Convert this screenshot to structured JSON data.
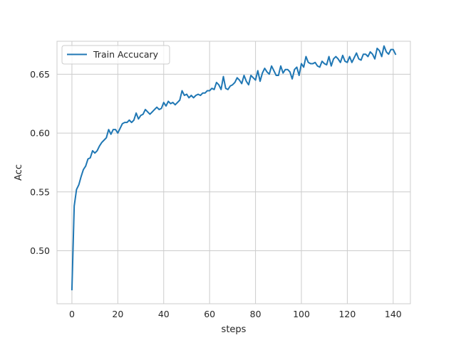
{
  "chart_data": {
    "type": "line",
    "title": "",
    "xlabel": "steps",
    "ylabel": "Acc",
    "xlim": [
      -6.5,
      147.5
    ],
    "ylim": [
      0.455,
      0.678
    ],
    "xticks": [
      0,
      20,
      40,
      60,
      80,
      100,
      120,
      140
    ],
    "yticks": [
      0.5,
      0.55,
      0.6,
      0.65
    ],
    "xtick_labels": [
      "0",
      "20",
      "40",
      "60",
      "80",
      "100",
      "120",
      "140"
    ],
    "ytick_labels": [
      "0.50",
      "0.55",
      "0.60",
      "0.65"
    ],
    "grid": true,
    "legend_position": "upper-left",
    "series": [
      {
        "name": "Train Accucary",
        "color": "#1f77b4",
        "x": [
          0,
          1,
          2,
          3,
          4,
          5,
          6,
          7,
          8,
          9,
          10,
          11,
          12,
          13,
          14,
          15,
          16,
          17,
          18,
          19,
          20,
          21,
          22,
          23,
          24,
          25,
          26,
          27,
          28,
          29,
          30,
          31,
          32,
          33,
          34,
          35,
          36,
          37,
          38,
          39,
          40,
          41,
          42,
          43,
          44,
          45,
          46,
          47,
          48,
          49,
          50,
          51,
          52,
          53,
          54,
          55,
          56,
          57,
          58,
          59,
          60,
          61,
          62,
          63,
          64,
          65,
          66,
          67,
          68,
          69,
          70,
          71,
          72,
          73,
          74,
          75,
          76,
          77,
          78,
          79,
          80,
          81,
          82,
          83,
          84,
          85,
          86,
          87,
          88,
          89,
          90,
          91,
          92,
          93,
          94,
          95,
          96,
          97,
          98,
          99,
          100,
          101,
          102,
          103,
          104,
          105,
          106,
          107,
          108,
          109,
          110,
          111,
          112,
          113,
          114,
          115,
          116,
          117,
          118,
          119,
          120,
          121,
          122,
          123,
          124,
          125,
          126,
          127,
          128,
          129,
          130,
          131,
          132,
          133,
          134,
          135,
          136,
          137,
          138,
          139,
          140,
          141
        ],
        "values": [
          0.467,
          0.538,
          0.552,
          0.556,
          0.563,
          0.569,
          0.572,
          0.578,
          0.579,
          0.585,
          0.583,
          0.585,
          0.589,
          0.592,
          0.594,
          0.596,
          0.603,
          0.599,
          0.603,
          0.603,
          0.6,
          0.604,
          0.608,
          0.609,
          0.609,
          0.611,
          0.609,
          0.611,
          0.617,
          0.612,
          0.615,
          0.616,
          0.62,
          0.618,
          0.616,
          0.618,
          0.62,
          0.622,
          0.62,
          0.621,
          0.626,
          0.623,
          0.627,
          0.625,
          0.626,
          0.624,
          0.626,
          0.628,
          0.636,
          0.632,
          0.633,
          0.63,
          0.632,
          0.63,
          0.632,
          0.633,
          0.632,
          0.634,
          0.634,
          0.636,
          0.636,
          0.638,
          0.637,
          0.643,
          0.641,
          0.637,
          0.648,
          0.638,
          0.637,
          0.64,
          0.641,
          0.643,
          0.647,
          0.645,
          0.642,
          0.649,
          0.644,
          0.641,
          0.649,
          0.647,
          0.645,
          0.653,
          0.644,
          0.651,
          0.655,
          0.652,
          0.65,
          0.657,
          0.653,
          0.649,
          0.649,
          0.657,
          0.651,
          0.654,
          0.654,
          0.652,
          0.646,
          0.654,
          0.656,
          0.649,
          0.659,
          0.656,
          0.665,
          0.66,
          0.659,
          0.659,
          0.66,
          0.657,
          0.656,
          0.661,
          0.659,
          0.658,
          0.665,
          0.657,
          0.663,
          0.665,
          0.663,
          0.66,
          0.666,
          0.661,
          0.66,
          0.665,
          0.66,
          0.664,
          0.668,
          0.663,
          0.662,
          0.667,
          0.667,
          0.665,
          0.669,
          0.667,
          0.663,
          0.672,
          0.67,
          0.665,
          0.674,
          0.669,
          0.667,
          0.671,
          0.671,
          0.667
        ]
      }
    ]
  }
}
